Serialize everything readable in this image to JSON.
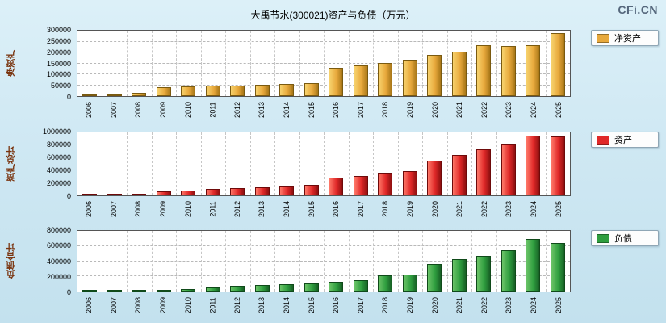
{
  "title": "大禹节水(300021)资产与负债（万元）",
  "logo": "CFi.CN",
  "chart_data": [
    {
      "type": "bar",
      "legend": "净资产",
      "ylabel": "净资产",
      "ylim": [
        0,
        300000
      ],
      "yticks": [
        0,
        50000,
        100000,
        150000,
        200000,
        250000,
        300000
      ],
      "categories": [
        "2006",
        "2007",
        "2008",
        "2009",
        "2010",
        "2011",
        "2012",
        "2013",
        "2014",
        "2015",
        "2016",
        "2017",
        "2018",
        "2019",
        "2020",
        "2021",
        "2022",
        "2023",
        "2024",
        "2025"
      ],
      "values": [
        4000,
        9000,
        14000,
        40000,
        45000,
        47000,
        50000,
        52000,
        55000,
        60000,
        130000,
        140000,
        152000,
        165000,
        190000,
        205000,
        235000,
        228000,
        232000,
        290000
      ],
      "color": "#E8A93C",
      "color_light": "#F7D36E",
      "color_dark": "#A87718",
      "border_color": "#7A5A10"
    },
    {
      "type": "bar",
      "legend": "资产",
      "ylabel": "资产总计",
      "ylim": [
        0,
        1000000
      ],
      "yticks": [
        0,
        200000,
        400000,
        600000,
        800000,
        1000000
      ],
      "categories": [
        "2006",
        "2007",
        "2008",
        "2009",
        "2010",
        "2011",
        "2012",
        "2013",
        "2014",
        "2015",
        "2016",
        "2017",
        "2018",
        "2019",
        "2020",
        "2021",
        "2022",
        "2023",
        "2024",
        "2025"
      ],
      "values": [
        10000,
        15000,
        28000,
        60000,
        80000,
        100000,
        118000,
        132000,
        150000,
        172000,
        280000,
        310000,
        365000,
        390000,
        555000,
        640000,
        725000,
        820000,
        950000,
        930000
      ],
      "color": "#E02828",
      "color_light": "#FF7A6A",
      "color_dark": "#8E1010",
      "border_color": "#6E0A0A"
    },
    {
      "type": "bar",
      "legend": "负债",
      "ylabel": "负债合计",
      "ylim": [
        0,
        800000
      ],
      "yticks": [
        0,
        200000,
        400000,
        600000,
        800000
      ],
      "categories": [
        "2006",
        "2007",
        "2008",
        "2009",
        "2010",
        "2011",
        "2012",
        "2013",
        "2014",
        "2015",
        "2016",
        "2017",
        "2018",
        "2019",
        "2020",
        "2021",
        "2022",
        "2023",
        "2024",
        "2025"
      ],
      "values": [
        5000,
        7000,
        12000,
        22000,
        34000,
        55000,
        70000,
        82000,
        98000,
        112000,
        125000,
        150000,
        215000,
        228000,
        360000,
        430000,
        472000,
        545000,
        695000,
        635000
      ],
      "color": "#2F9E3F",
      "color_light": "#6CC468",
      "color_dark": "#176025",
      "border_color": "#104A1A"
    }
  ]
}
